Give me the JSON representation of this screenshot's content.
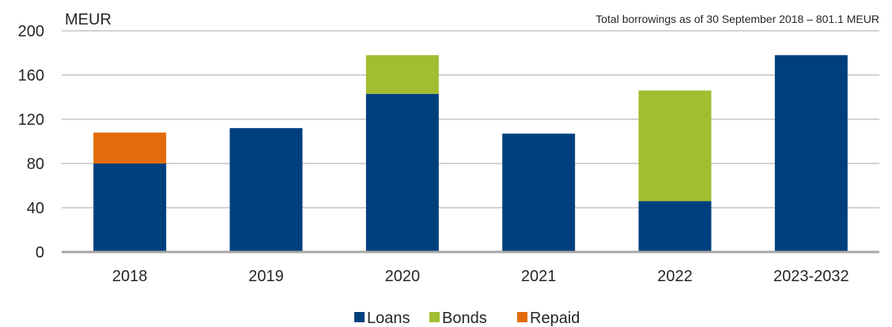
{
  "chart_data": {
    "type": "bar",
    "stacked": true,
    "unit_label": "MEUR",
    "subtitle": "Total borrowings as of 30 September 2018 – 801.1 MEUR",
    "categories": [
      "2018",
      "2019",
      "2020",
      "2021",
      "2022",
      "2023-2032"
    ],
    "series": [
      {
        "name": "Loans",
        "color": "#003f7d",
        "values": [
          80,
          112,
          143,
          107,
          46,
          178
        ]
      },
      {
        "name": "Bonds",
        "color": "#a2bd30",
        "values": [
          0,
          0,
          35,
          0,
          100,
          0
        ]
      },
      {
        "name": "Repaid",
        "color": "#e36c0a",
        "values": [
          28,
          0,
          0,
          0,
          0,
          0
        ]
      }
    ],
    "ylim": [
      0,
      200
    ],
    "yticks": [
      0,
      40,
      80,
      120,
      160,
      200
    ],
    "grid": true,
    "legend_position": "bottom"
  }
}
